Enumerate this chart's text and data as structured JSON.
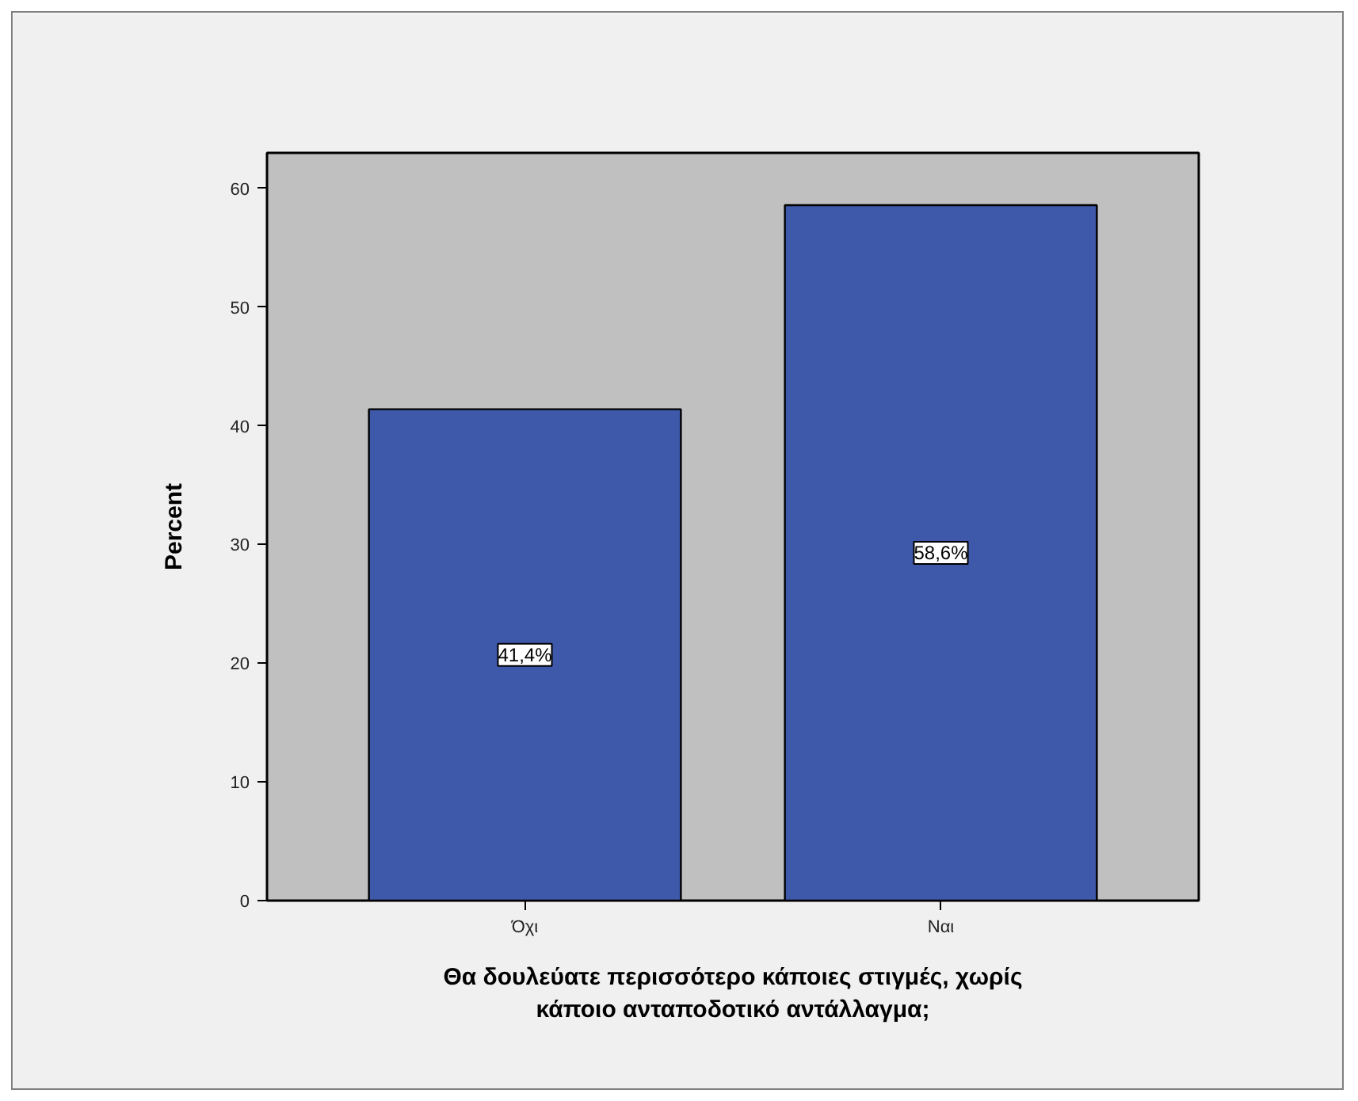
{
  "chart_data": {
    "type": "bar",
    "categories": [
      "Όχι",
      "Ναι"
    ],
    "values": [
      41.4,
      58.6
    ],
    "color": "#3e58aa",
    "value_labels": [
      "41,4%",
      "58,6%"
    ],
    "ylim": [
      0,
      63
    ],
    "yticks": [
      0,
      10,
      20,
      30,
      40,
      50,
      60
    ],
    "ylabel": "Percent",
    "xlabel": "Θα δουλεύατε περισσότερο κάποιες στιγμές, χωρίς κάποιο ανταποδοτικό αντάλλαγμα;"
  }
}
